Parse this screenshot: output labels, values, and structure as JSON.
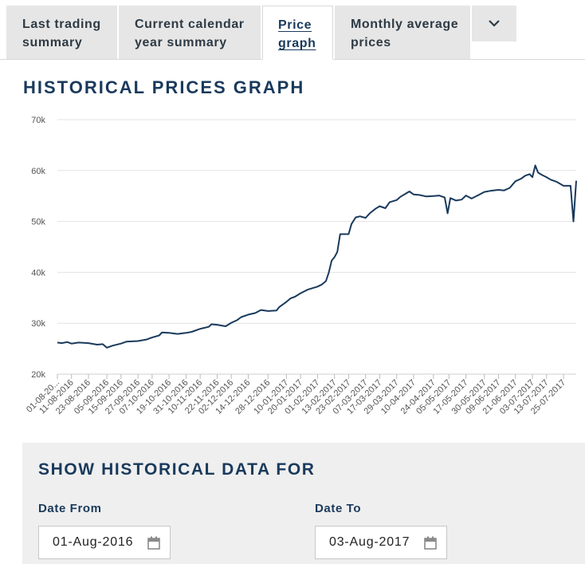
{
  "tabs": [
    {
      "line1": "Last trading",
      "line2": "summary",
      "active": false
    },
    {
      "line1": "Current calendar",
      "line2": "year summary",
      "active": false
    },
    {
      "line1": "Price",
      "line2": "graph",
      "active": true
    },
    {
      "line1": "Monthly average",
      "line2": "prices",
      "active": false
    }
  ],
  "more_icon": "chevron-down-icon",
  "graph_title": "HISTORICAL PRICES GRAPH",
  "chart_data": {
    "type": "line",
    "title": "HISTORICAL PRICES GRAPH",
    "xlabel": "",
    "ylabel": "",
    "ylim": [
      20000,
      70000
    ],
    "y_ticks": [
      {
        "value": 20000,
        "label": "20k"
      },
      {
        "value": 30000,
        "label": "30k"
      },
      {
        "value": 40000,
        "label": "40k"
      },
      {
        "value": 50000,
        "label": "50k"
      },
      {
        "value": 60000,
        "label": "60k"
      },
      {
        "value": 70000,
        "label": "70k"
      }
    ],
    "x_range": [
      "2016-08-01",
      "2017-08-03"
    ],
    "x_ticks": [
      {
        "date": "2016-08-01",
        "label": "01-08-20..."
      },
      {
        "date": "2016-08-11",
        "label": "11-08-2016"
      },
      {
        "date": "2016-08-23",
        "label": "23-08-2016"
      },
      {
        "date": "2016-09-05",
        "label": "05-09-2016"
      },
      {
        "date": "2016-09-15",
        "label": "15-09-2016"
      },
      {
        "date": "2016-09-27",
        "label": "27-09-2016"
      },
      {
        "date": "2016-10-07",
        "label": "07-10-2016"
      },
      {
        "date": "2016-10-19",
        "label": "19-10-2016"
      },
      {
        "date": "2016-10-31",
        "label": "31-10-2016"
      },
      {
        "date": "2016-11-10",
        "label": "10-11-2016"
      },
      {
        "date": "2016-11-22",
        "label": "22-11-2016"
      },
      {
        "date": "2016-12-02",
        "label": "02-12-2016"
      },
      {
        "date": "2016-12-14",
        "label": "14-12-2016"
      },
      {
        "date": "2016-12-28",
        "label": "28-12-2016"
      },
      {
        "date": "2017-01-10",
        "label": "10-01-2017"
      },
      {
        "date": "2017-01-20",
        "label": "20-01-2017"
      },
      {
        "date": "2017-02-01",
        "label": "01-02-2017"
      },
      {
        "date": "2017-02-13",
        "label": "13-02-2017"
      },
      {
        "date": "2017-02-23",
        "label": "23-02-2017"
      },
      {
        "date": "2017-03-07",
        "label": "07-03-2017"
      },
      {
        "date": "2017-03-17",
        "label": "17-03-2017"
      },
      {
        "date": "2017-03-29",
        "label": "29-03-2017"
      },
      {
        "date": "2017-04-10",
        "label": "10-04-2017"
      },
      {
        "date": "2017-04-24",
        "label": "24-04-2017"
      },
      {
        "date": "2017-05-05",
        "label": "05-05-2017"
      },
      {
        "date": "2017-05-17",
        "label": "17-05-2017"
      },
      {
        "date": "2017-05-30",
        "label": "30-05-2017"
      },
      {
        "date": "2017-06-09",
        "label": "09-06-2017"
      },
      {
        "date": "2017-06-21",
        "label": "21-06-2017"
      },
      {
        "date": "2017-07-03",
        "label": "03-07-2017"
      },
      {
        "date": "2017-07-13",
        "label": "13-07-2017"
      },
      {
        "date": "2017-07-25",
        "label": "25-07-2017"
      }
    ],
    "grid": true,
    "legend": "none",
    "line_color": "#1a3a5c",
    "series": [
      {
        "points": [
          [
            "2016-08-01",
            26200
          ],
          [
            "2016-08-04",
            26100
          ],
          [
            "2016-08-08",
            26300
          ],
          [
            "2016-08-11",
            26000
          ],
          [
            "2016-08-16",
            26200
          ],
          [
            "2016-08-23",
            26100
          ],
          [
            "2016-08-29",
            25800
          ],
          [
            "2016-09-02",
            25900
          ],
          [
            "2016-09-05",
            25200
          ],
          [
            "2016-09-09",
            25600
          ],
          [
            "2016-09-15",
            26000
          ],
          [
            "2016-09-19",
            26400
          ],
          [
            "2016-09-27",
            26500
          ],
          [
            "2016-10-03",
            26800
          ],
          [
            "2016-10-07",
            27200
          ],
          [
            "2016-10-12",
            27600
          ],
          [
            "2016-10-14",
            28200
          ],
          [
            "2016-10-19",
            28100
          ],
          [
            "2016-10-25",
            27900
          ],
          [
            "2016-10-31",
            28100
          ],
          [
            "2016-11-04",
            28300
          ],
          [
            "2016-11-10",
            28900
          ],
          [
            "2016-11-16",
            29300
          ],
          [
            "2016-11-18",
            29800
          ],
          [
            "2016-11-22",
            29700
          ],
          [
            "2016-11-28",
            29400
          ],
          [
            "2016-12-02",
            30100
          ],
          [
            "2016-12-06",
            30600
          ],
          [
            "2016-12-09",
            31200
          ],
          [
            "2016-12-14",
            31700
          ],
          [
            "2016-12-19",
            32000
          ],
          [
            "2016-12-23",
            32600
          ],
          [
            "2016-12-28",
            32400
          ],
          [
            "2017-01-03",
            32500
          ],
          [
            "2017-01-05",
            33200
          ],
          [
            "2017-01-10",
            34200
          ],
          [
            "2017-01-13",
            34900
          ],
          [
            "2017-01-16",
            35200
          ],
          [
            "2017-01-20",
            35900
          ],
          [
            "2017-01-25",
            36600
          ],
          [
            "2017-02-01",
            37200
          ],
          [
            "2017-02-04",
            37600
          ],
          [
            "2017-02-07",
            38300
          ],
          [
            "2017-02-09",
            40000
          ],
          [
            "2017-02-11",
            42300
          ],
          [
            "2017-02-13",
            43000
          ],
          [
            "2017-02-15",
            44000
          ],
          [
            "2017-02-17",
            47500
          ],
          [
            "2017-02-23",
            47500
          ],
          [
            "2017-02-25",
            49500
          ],
          [
            "2017-02-28",
            50800
          ],
          [
            "2017-03-03",
            51000
          ],
          [
            "2017-03-07",
            50700
          ],
          [
            "2017-03-10",
            51600
          ],
          [
            "2017-03-14",
            52500
          ],
          [
            "2017-03-17",
            53000
          ],
          [
            "2017-03-21",
            52600
          ],
          [
            "2017-03-24",
            53800
          ],
          [
            "2017-03-29",
            54200
          ],
          [
            "2017-04-01",
            54900
          ],
          [
            "2017-04-04",
            55400
          ],
          [
            "2017-04-07",
            55900
          ],
          [
            "2017-04-10",
            55300
          ],
          [
            "2017-04-14",
            55200
          ],
          [
            "2017-04-19",
            54900
          ],
          [
            "2017-04-24",
            55000
          ],
          [
            "2017-04-28",
            55100
          ],
          [
            "2017-05-02",
            54700
          ],
          [
            "2017-05-04",
            51600
          ],
          [
            "2017-05-06",
            54600
          ],
          [
            "2017-05-10",
            54100
          ],
          [
            "2017-05-14",
            54300
          ],
          [
            "2017-05-17",
            55100
          ],
          [
            "2017-05-21",
            54500
          ],
          [
            "2017-05-26",
            55200
          ],
          [
            "2017-05-30",
            55800
          ],
          [
            "2017-06-03",
            56000
          ],
          [
            "2017-06-09",
            56200
          ],
          [
            "2017-06-13",
            56100
          ],
          [
            "2017-06-17",
            56600
          ],
          [
            "2017-06-21",
            57900
          ],
          [
            "2017-06-25",
            58400
          ],
          [
            "2017-06-28",
            59000
          ],
          [
            "2017-07-01",
            59300
          ],
          [
            "2017-07-03",
            58700
          ],
          [
            "2017-07-05",
            61000
          ],
          [
            "2017-07-07",
            59600
          ],
          [
            "2017-07-10",
            59100
          ],
          [
            "2017-07-13",
            58700
          ],
          [
            "2017-07-16",
            58200
          ],
          [
            "2017-07-20",
            57800
          ],
          [
            "2017-07-25",
            57000
          ],
          [
            "2017-07-30",
            57000
          ],
          [
            "2017-08-01",
            50000
          ],
          [
            "2017-08-03",
            58000
          ]
        ]
      }
    ]
  },
  "historical": {
    "title": "SHOW HISTORICAL DATA FOR",
    "from_label": "Date From",
    "to_label": "Date To",
    "from_value": "01-Aug-2016",
    "to_value": "03-Aug-2017",
    "calendar_icon": "calendar-icon"
  }
}
